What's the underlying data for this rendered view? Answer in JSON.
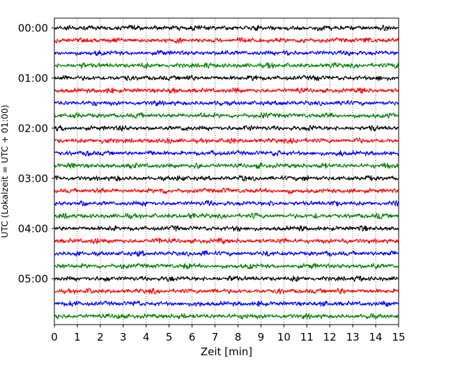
{
  "chart_data": {
    "type": "line",
    "title": "",
    "xlabel": "Zeit  [min]",
    "ylabel": "UTC (Lokalzeit = UTC + 01:00)",
    "xlim": [
      0,
      15
    ],
    "xticks": [
      0,
      1,
      2,
      3,
      4,
      5,
      6,
      7,
      8,
      9,
      10,
      11,
      12,
      13,
      14,
      15
    ],
    "xtick_labels": [
      "0",
      "1",
      "2",
      "3",
      "4",
      "5",
      "6",
      "7",
      "8",
      "9",
      "10",
      "11",
      "12",
      "13",
      "14",
      "15"
    ],
    "grid": "vertical dotted",
    "legend": "none",
    "y_tick_labels": [
      {
        "row": 0,
        "label": "00:00"
      },
      {
        "row": 4,
        "label": "01:00"
      },
      {
        "row": 8,
        "label": "02:00"
      },
      {
        "row": 12,
        "label": "03:00"
      },
      {
        "row": 16,
        "label": "04:00"
      },
      {
        "row": 20,
        "label": "05:00"
      }
    ],
    "series_colors": [
      "#000000",
      "#ff0000",
      "#0000ff",
      "#008000"
    ],
    "rows": [
      {
        "start": "00:00",
        "color": "#000000"
      },
      {
        "start": "00:15",
        "color": "#ff0000"
      },
      {
        "start": "00:30",
        "color": "#0000ff"
      },
      {
        "start": "00:45",
        "color": "#008000"
      },
      {
        "start": "01:00",
        "color": "#000000"
      },
      {
        "start": "01:15",
        "color": "#ff0000"
      },
      {
        "start": "01:30",
        "color": "#0000ff"
      },
      {
        "start": "01:45",
        "color": "#008000"
      },
      {
        "start": "02:00",
        "color": "#000000"
      },
      {
        "start": "02:15",
        "color": "#ff0000"
      },
      {
        "start": "02:30",
        "color": "#0000ff"
      },
      {
        "start": "02:45",
        "color": "#008000"
      },
      {
        "start": "03:00",
        "color": "#000000"
      },
      {
        "start": "03:15",
        "color": "#ff0000"
      },
      {
        "start": "03:30",
        "color": "#0000ff"
      },
      {
        "start": "03:45",
        "color": "#008000"
      },
      {
        "start": "04:00",
        "color": "#000000"
      },
      {
        "start": "04:15",
        "color": "#ff0000"
      },
      {
        "start": "04:30",
        "color": "#0000ff"
      },
      {
        "start": "04:45",
        "color": "#008000"
      },
      {
        "start": "05:00",
        "color": "#000000"
      },
      {
        "start": "05:15",
        "color": "#ff0000"
      },
      {
        "start": "05:30",
        "color": "#0000ff"
      },
      {
        "start": "05:45",
        "color": "#008000"
      }
    ]
  }
}
